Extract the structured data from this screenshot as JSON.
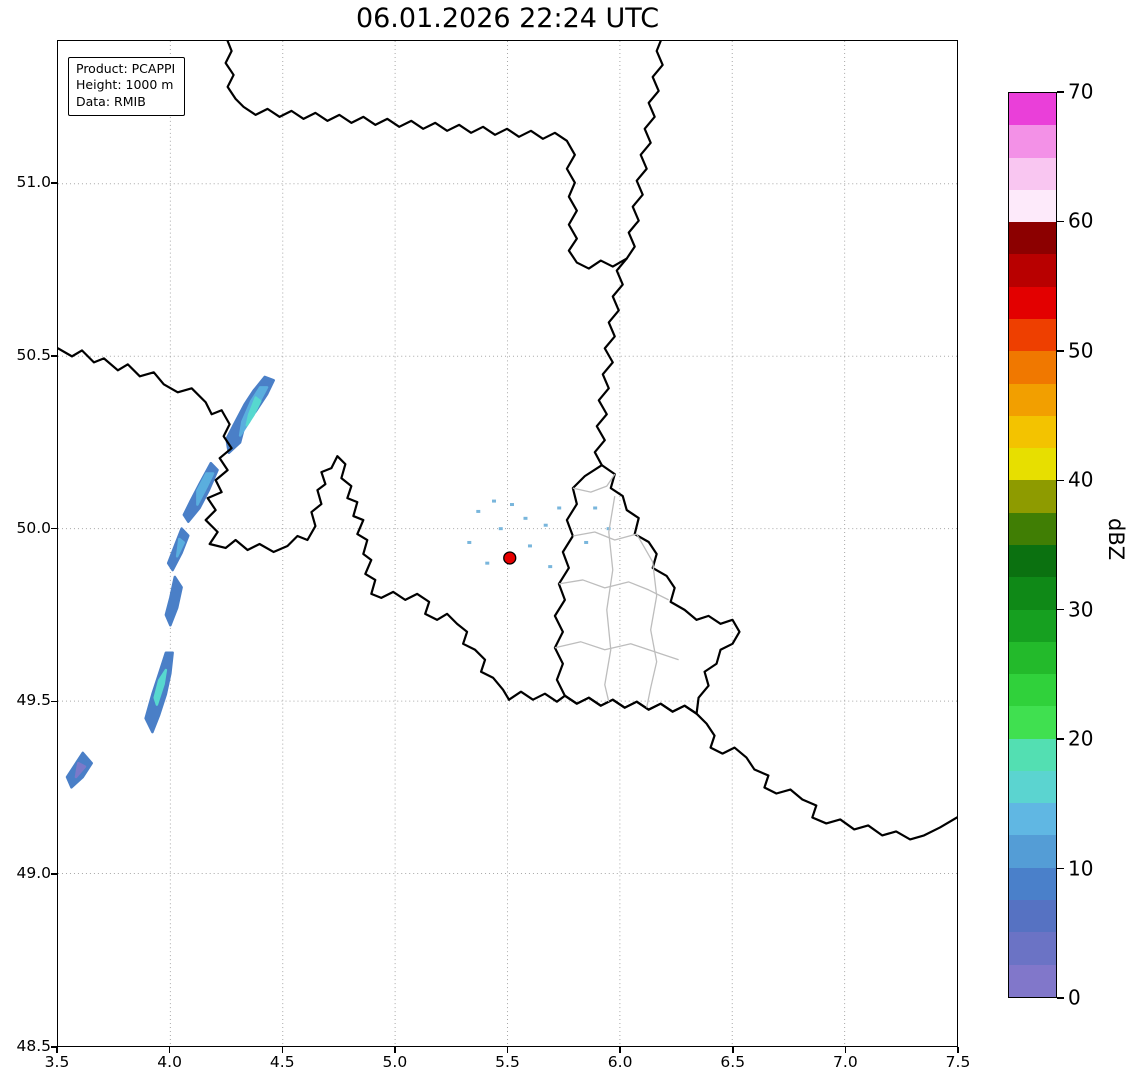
{
  "title": "06.01.2026 22:24 UTC",
  "info_box": {
    "lines": [
      "Product: PCAPPI",
      "Height: 1000 m",
      "Data: RMIB"
    ]
  },
  "chart_data": {
    "type": "heatmap",
    "title": "06.01.2026 22:24 UTC",
    "product": "PCAPPI",
    "height": "1000 m",
    "data_source": "RMIB",
    "xlabel": "",
    "ylabel": "",
    "xlim": [
      3.5,
      7.5
    ],
    "ylim": [
      48.5,
      51.414
    ],
    "xticks": [
      "3.5",
      "4.0",
      "4.5",
      "5.0",
      "5.5",
      "6.0",
      "6.5",
      "7.0",
      "7.5"
    ],
    "yticks": [
      "48.5",
      "49.0",
      "49.5",
      "50.0",
      "50.5",
      "51.0"
    ],
    "grid": "dotted",
    "radar_site": {
      "lon": 5.51,
      "lat": 49.915,
      "color": "#e60000"
    },
    "colorbar": {
      "label": "dBZ",
      "min": 0,
      "max": 70,
      "ticks": [
        0,
        10,
        20,
        30,
        40,
        50,
        60,
        70
      ],
      "segment_step_dbz": 2.5,
      "colors_bottom_to_top": [
        "#8177ca",
        "#6b73c5",
        "#5672c2",
        "#4a80ca",
        "#549dd6",
        "#60b7e3",
        "#5bd4d0",
        "#53dfb2",
        "#40e050",
        "#30d13b",
        "#23ba2b",
        "#16a020",
        "#0f8917",
        "#0b7110",
        "#407e04",
        "#8e9b00",
        "#e7df00",
        "#f3c300",
        "#f29f00",
        "#f07800",
        "#ee3f00",
        "#e30000",
        "#b80000",
        "#8c0000",
        "#fdeafa",
        "#f9c6f1",
        "#f391e7",
        "#ea3fd9"
      ]
    },
    "echo_colors": {
      "blue": "#4a7fc7",
      "light": "#5aaede",
      "cyan": "#57d8cf",
      "slate": "#7b79c9",
      "speck": "#79b6dc"
    },
    "echoes": [
      {
        "color": "blue",
        "dbz": "5-10",
        "points": [
          [
            4.26,
            50.22
          ],
          [
            4.31,
            50.25
          ],
          [
            4.33,
            50.3
          ],
          [
            4.38,
            50.34
          ],
          [
            4.43,
            50.39
          ],
          [
            4.46,
            50.43
          ],
          [
            4.42,
            50.44
          ],
          [
            4.37,
            50.4
          ],
          [
            4.33,
            50.36
          ],
          [
            4.29,
            50.31
          ],
          [
            4.25,
            50.26
          ]
        ]
      },
      {
        "color": "light",
        "dbz": "10-15",
        "points": [
          [
            4.31,
            50.27
          ],
          [
            4.35,
            50.31
          ],
          [
            4.39,
            50.36
          ],
          [
            4.43,
            50.41
          ],
          [
            4.4,
            50.41
          ],
          [
            4.36,
            50.37
          ],
          [
            4.32,
            50.31
          ]
        ]
      },
      {
        "color": "cyan",
        "dbz": "15-18",
        "points": [
          [
            4.34,
            50.3
          ],
          [
            4.37,
            50.33
          ],
          [
            4.4,
            50.37
          ],
          [
            4.38,
            50.38
          ],
          [
            4.35,
            50.33
          ]
        ]
      },
      {
        "color": "blue",
        "dbz": "5-10",
        "points": [
          [
            4.08,
            50.02
          ],
          [
            4.13,
            50.06
          ],
          [
            4.17,
            50.11
          ],
          [
            4.21,
            50.17
          ],
          [
            4.18,
            50.19
          ],
          [
            4.13,
            50.13
          ],
          [
            4.09,
            50.08
          ],
          [
            4.06,
            50.04
          ]
        ]
      },
      {
        "color": "light",
        "dbz": "10-13",
        "points": [
          [
            4.12,
            50.07
          ],
          [
            4.16,
            50.12
          ],
          [
            4.19,
            50.16
          ],
          [
            4.16,
            50.16
          ],
          [
            4.12,
            50.11
          ]
        ]
      },
      {
        "color": "blue",
        "dbz": "5-10",
        "points": [
          [
            4.01,
            49.88
          ],
          [
            4.05,
            49.93
          ],
          [
            4.08,
            49.98
          ],
          [
            4.05,
            50.0
          ],
          [
            4.02,
            49.95
          ],
          [
            3.99,
            49.9
          ]
        ]
      },
      {
        "color": "light",
        "dbz": "10-12",
        "points": [
          [
            4.03,
            49.92
          ],
          [
            4.06,
            49.96
          ],
          [
            4.04,
            49.97
          ]
        ]
      },
      {
        "color": "blue",
        "dbz": "5-10",
        "points": [
          [
            4.0,
            49.72
          ],
          [
            4.03,
            49.77
          ],
          [
            4.05,
            49.83
          ],
          [
            4.02,
            49.86
          ],
          [
            4.0,
            49.8
          ],
          [
            3.98,
            49.75
          ]
        ]
      },
      {
        "color": "blue",
        "dbz": "5-10",
        "points": [
          [
            3.92,
            49.41
          ],
          [
            3.95,
            49.46
          ],
          [
            3.98,
            49.52
          ],
          [
            4.0,
            49.58
          ],
          [
            4.01,
            49.64
          ],
          [
            3.98,
            49.64
          ],
          [
            3.95,
            49.58
          ],
          [
            3.92,
            49.52
          ],
          [
            3.89,
            49.45
          ]
        ]
      },
      {
        "color": "cyan",
        "dbz": "13-17",
        "points": [
          [
            3.94,
            49.49
          ],
          [
            3.97,
            49.55
          ],
          [
            3.98,
            49.59
          ],
          [
            3.95,
            49.56
          ],
          [
            3.93,
            49.51
          ]
        ]
      },
      {
        "color": "blue",
        "dbz": "5-10",
        "points": [
          [
            3.56,
            49.25
          ],
          [
            3.61,
            49.28
          ],
          [
            3.65,
            49.32
          ],
          [
            3.61,
            49.35
          ],
          [
            3.57,
            49.31
          ],
          [
            3.54,
            49.28
          ]
        ]
      },
      {
        "color": "slate",
        "dbz": "0-5",
        "points": [
          [
            3.58,
            49.28
          ],
          [
            3.62,
            49.31
          ],
          [
            3.59,
            49.32
          ]
        ]
      }
    ],
    "specks": [
      [
        5.37,
        50.05
      ],
      [
        5.44,
        50.08
      ],
      [
        5.52,
        50.07
      ],
      [
        5.58,
        50.03
      ],
      [
        5.47,
        50.0
      ],
      [
        5.33,
        49.96
      ],
      [
        5.41,
        49.9
      ],
      [
        5.6,
        49.95
      ],
      [
        5.67,
        50.01
      ],
      [
        5.73,
        50.06
      ],
      [
        5.89,
        50.06
      ],
      [
        5.95,
        50.0
      ],
      [
        5.85,
        49.96
      ],
      [
        5.69,
        49.89
      ]
    ]
  }
}
